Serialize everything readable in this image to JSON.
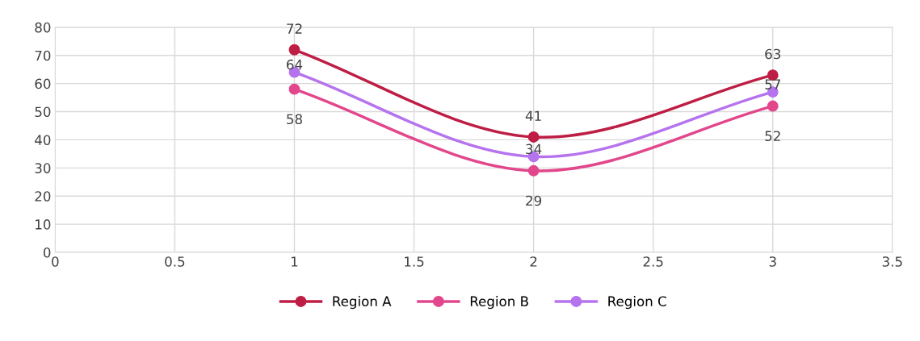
{
  "chart_data": {
    "type": "line",
    "x": [
      1,
      2,
      3
    ],
    "series": [
      {
        "name": "Region A",
        "color": "#be1e45",
        "values": [
          72,
          41,
          63
        ]
      },
      {
        "name": "Region B",
        "color": "#e2478c",
        "values": [
          58,
          29,
          52
        ]
      },
      {
        "name": "Region C",
        "color": "#b673ee",
        "values": [
          64,
          34,
          57
        ]
      }
    ],
    "xlim": [
      0,
      3.5
    ],
    "xticks": [
      0,
      0.5,
      1,
      1.5,
      2,
      2.5,
      3,
      3.5
    ],
    "ylim": [
      0,
      80
    ],
    "yticks": [
      0,
      10,
      20,
      30,
      40,
      50,
      60,
      70,
      80
    ],
    "grid": true,
    "legend": "bottom",
    "marker": "circle",
    "line_style": "solid",
    "data_labels": true
  }
}
